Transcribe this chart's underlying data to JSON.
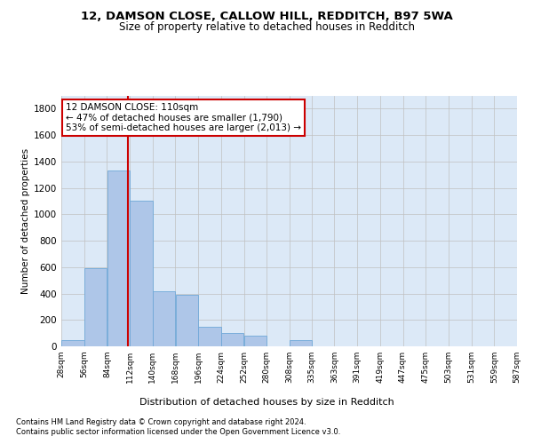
{
  "title_line1": "12, DAMSON CLOSE, CALLOW HILL, REDDITCH, B97 5WA",
  "title_line2": "Size of property relative to detached houses in Redditch",
  "xlabel": "Distribution of detached houses by size in Redditch",
  "ylabel": "Number of detached properties",
  "property_size": 110,
  "annotation_title": "12 DAMSON CLOSE: 110sqm",
  "annotation_line2": "← 47% of detached houses are smaller (1,790)",
  "annotation_line3": "53% of semi-detached houses are larger (2,013) →",
  "footnote1": "Contains HM Land Registry data © Crown copyright and database right 2024.",
  "footnote2": "Contains public sector information licensed under the Open Government Licence v3.0.",
  "bar_color": "#aec6e8",
  "bar_edge_color": "#6fa8d8",
  "grid_color": "#c0c0c0",
  "vline_color": "#cc0000",
  "annotation_box_color": "#cc0000",
  "bin_edges": [
    28,
    56,
    84,
    112,
    140,
    168,
    196,
    224,
    252,
    280,
    308,
    335,
    363,
    391,
    419,
    447,
    475,
    503,
    531,
    559,
    587
  ],
  "bar_heights": [
    50,
    590,
    1330,
    1100,
    420,
    390,
    150,
    100,
    80,
    0,
    50,
    0,
    0,
    0,
    0,
    0,
    0,
    0,
    0,
    0
  ],
  "ylim": [
    0,
    1900
  ],
  "ytick_step": 200,
  "background_color": "#ffffff",
  "plot_bg_color": "#dce9f7"
}
